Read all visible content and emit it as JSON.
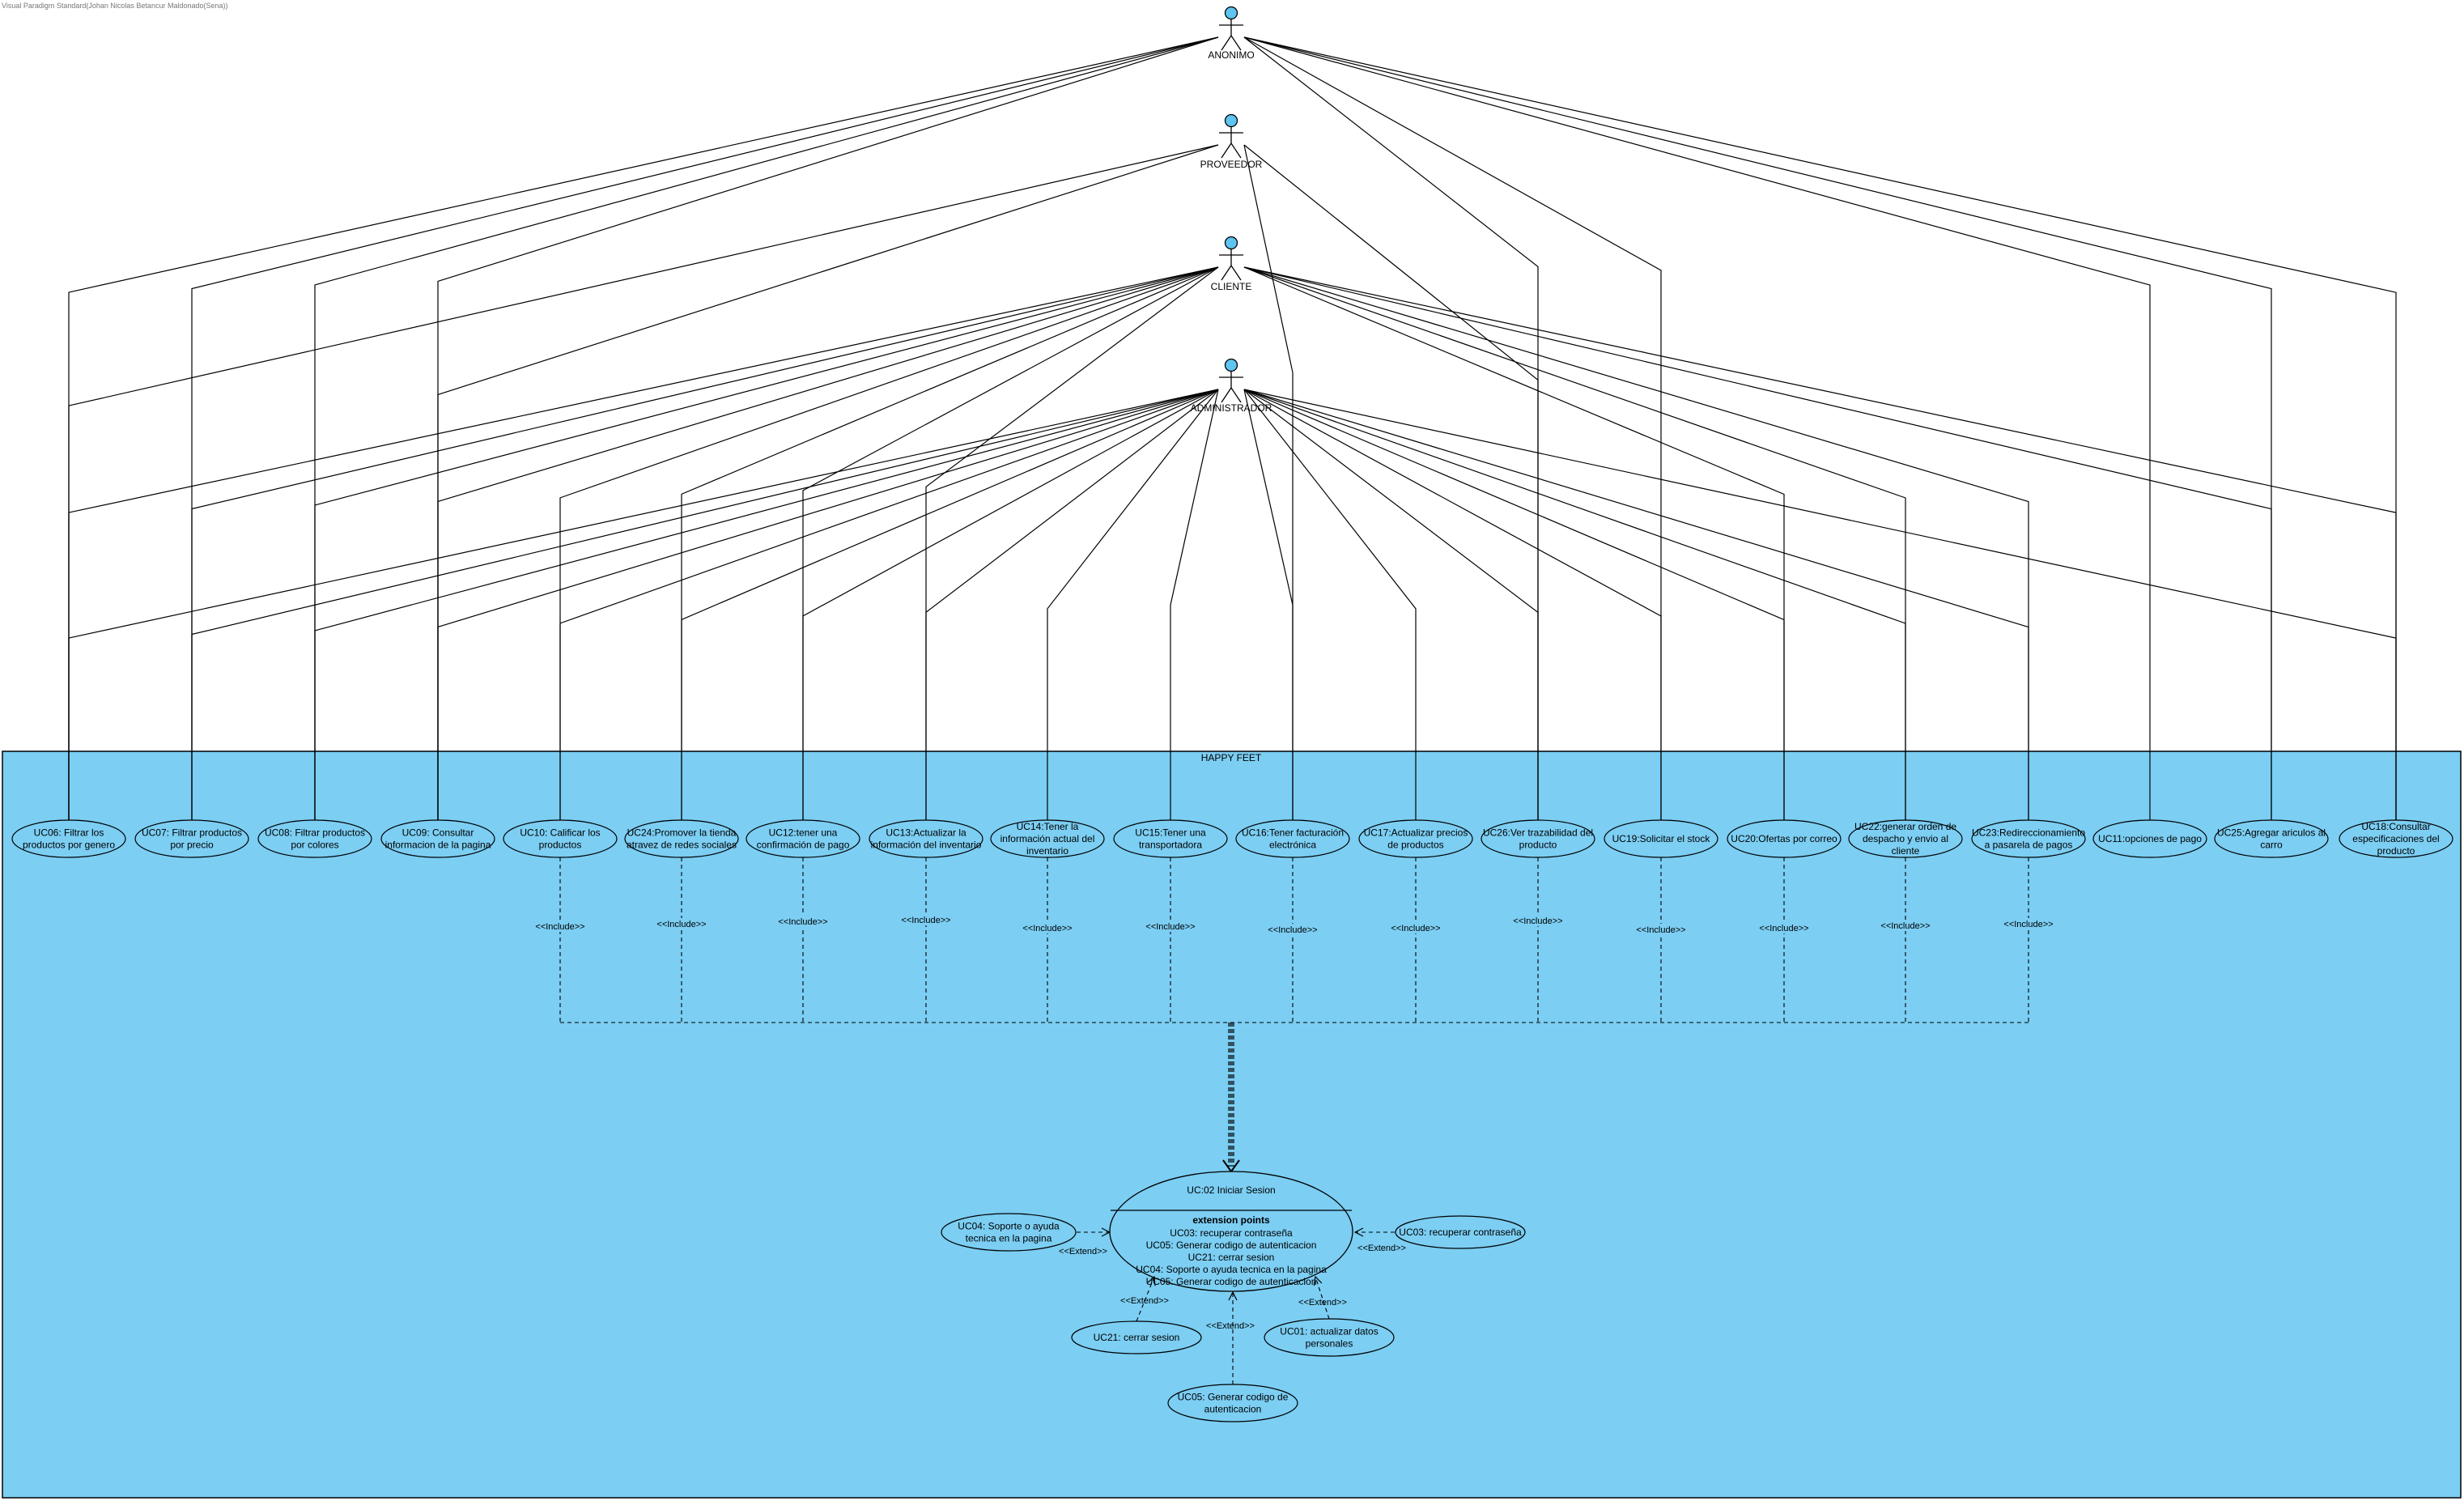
{
  "watermark": "Visual Paradigm Standard(Johan Nicolas Betancur Maldonado(Sena))",
  "system": {
    "name": "HAPPY FEET"
  },
  "actors": [
    {
      "id": "anonimo",
      "label": "ANONIMO"
    },
    {
      "id": "proveedor",
      "label": "PROVEEDOR"
    },
    {
      "id": "cliente",
      "label": "CLIENTE"
    },
    {
      "id": "admin",
      "label": "ADMINISTRADOR"
    }
  ],
  "use_cases": [
    {
      "id": "uc06",
      "lines": [
        "UC06: Filtrar los",
        "productos por genero"
      ]
    },
    {
      "id": "uc07",
      "lines": [
        "UC07: Filtrar productos",
        "por precio"
      ]
    },
    {
      "id": "uc08",
      "lines": [
        "UC08: Filtrar productos",
        "por colores"
      ]
    },
    {
      "id": "uc09",
      "lines": [
        "UC09: Consultar",
        "informacion de la pagina"
      ]
    },
    {
      "id": "uc10",
      "lines": [
        "UC10: Calificar los",
        "productos"
      ]
    },
    {
      "id": "uc24",
      "lines": [
        "UC24:Promover la tienda",
        "atravez de redes sociales"
      ]
    },
    {
      "id": "uc12",
      "lines": [
        "UC12:tener una",
        "confirmación de pago"
      ]
    },
    {
      "id": "uc13",
      "lines": [
        "UC13:Actualizar la",
        "información del inventario"
      ]
    },
    {
      "id": "uc14",
      "lines": [
        "UC14:Tener la",
        "información actual del",
        "inventario"
      ]
    },
    {
      "id": "uc15",
      "lines": [
        "UC15:Tener una",
        "transportadora"
      ]
    },
    {
      "id": "uc16",
      "lines": [
        "UC16:Tener facturación",
        "electrónica"
      ]
    },
    {
      "id": "uc17",
      "lines": [
        "UC17:Actualizar precios",
        "de productos"
      ]
    },
    {
      "id": "uc26",
      "lines": [
        "UC26:Ver trazabilidad del",
        "producto"
      ]
    },
    {
      "id": "uc19",
      "lines": [
        "UC19:Solicitar el stock"
      ]
    },
    {
      "id": "uc20",
      "lines": [
        "UC20:Ofertas por correo"
      ]
    },
    {
      "id": "uc22",
      "lines": [
        "UC22:generar orden de",
        "despacho y envio al",
        "cliente"
      ]
    },
    {
      "id": "uc23",
      "lines": [
        "UC23:Redireccionamiento",
        "a pasarela de pagos"
      ]
    },
    {
      "id": "uc11",
      "lines": [
        "UC11:opciones de pago"
      ]
    },
    {
      "id": "uc25",
      "lines": [
        "UC25:Agregar ariculos al",
        "carro"
      ]
    },
    {
      "id": "uc18",
      "lines": [
        "UC18:Consultar",
        "especificaciones del",
        "producto"
      ]
    }
  ],
  "include_label": "<<Include>>",
  "extend_label": "<<Extend>>",
  "login": {
    "title": "UC:02 Iniciar Sesion",
    "ext_header": "extension points",
    "ext_points": [
      "UC03: recuperar contraseña",
      "UC05: Generar codigo de autenticacion",
      "UC21: cerrar sesion",
      "UC04: Soporte o ayuda tecnica en la pagina",
      "UC05: Generar codigo de autenticacion"
    ]
  },
  "extenders": [
    {
      "id": "uc04",
      "lines": [
        "UC04: Soporte o ayuda",
        "tecnica en la pagina"
      ]
    },
    {
      "id": "uc03",
      "lines": [
        "UC03: recuperar contraseña"
      ]
    },
    {
      "id": "uc21",
      "lines": [
        "UC21: cerrar sesion"
      ]
    },
    {
      "id": "uc01",
      "lines": [
        "UC01: actualizar datos",
        "personales"
      ]
    },
    {
      "id": "uc05",
      "lines": [
        "UC05: Generar codigo de",
        "autenticacion"
      ]
    }
  ],
  "colors": {
    "system_fill": "#7ccef3",
    "actor_head": "#5ec4f0",
    "line": "#000000"
  },
  "associations": {
    "anonimo": [
      "uc06",
      "uc07",
      "uc08",
      "uc09",
      "uc26",
      "uc19",
      "uc11",
      "uc25",
      "uc18"
    ],
    "proveedor": [
      "uc06",
      "uc09",
      "uc16",
      "uc26"
    ],
    "cliente": [
      "uc06",
      "uc07",
      "uc08",
      "uc09",
      "uc10",
      "uc24",
      "uc12",
      "uc13",
      "uc20",
      "uc22",
      "uc23",
      "uc25",
      "uc18"
    ],
    "admin": [
      "uc06",
      "uc07",
      "uc08",
      "uc09",
      "uc10",
      "uc24",
      "uc12",
      "uc13",
      "uc14",
      "uc15",
      "uc16",
      "uc17",
      "uc26",
      "uc19",
      "uc20",
      "uc22",
      "uc23",
      "uc18"
    ]
  },
  "includes": [
    "uc10",
    "uc24",
    "uc12",
    "uc13",
    "uc14",
    "uc15",
    "uc16",
    "uc17",
    "uc26",
    "uc19",
    "uc20",
    "uc22",
    "uc23"
  ]
}
